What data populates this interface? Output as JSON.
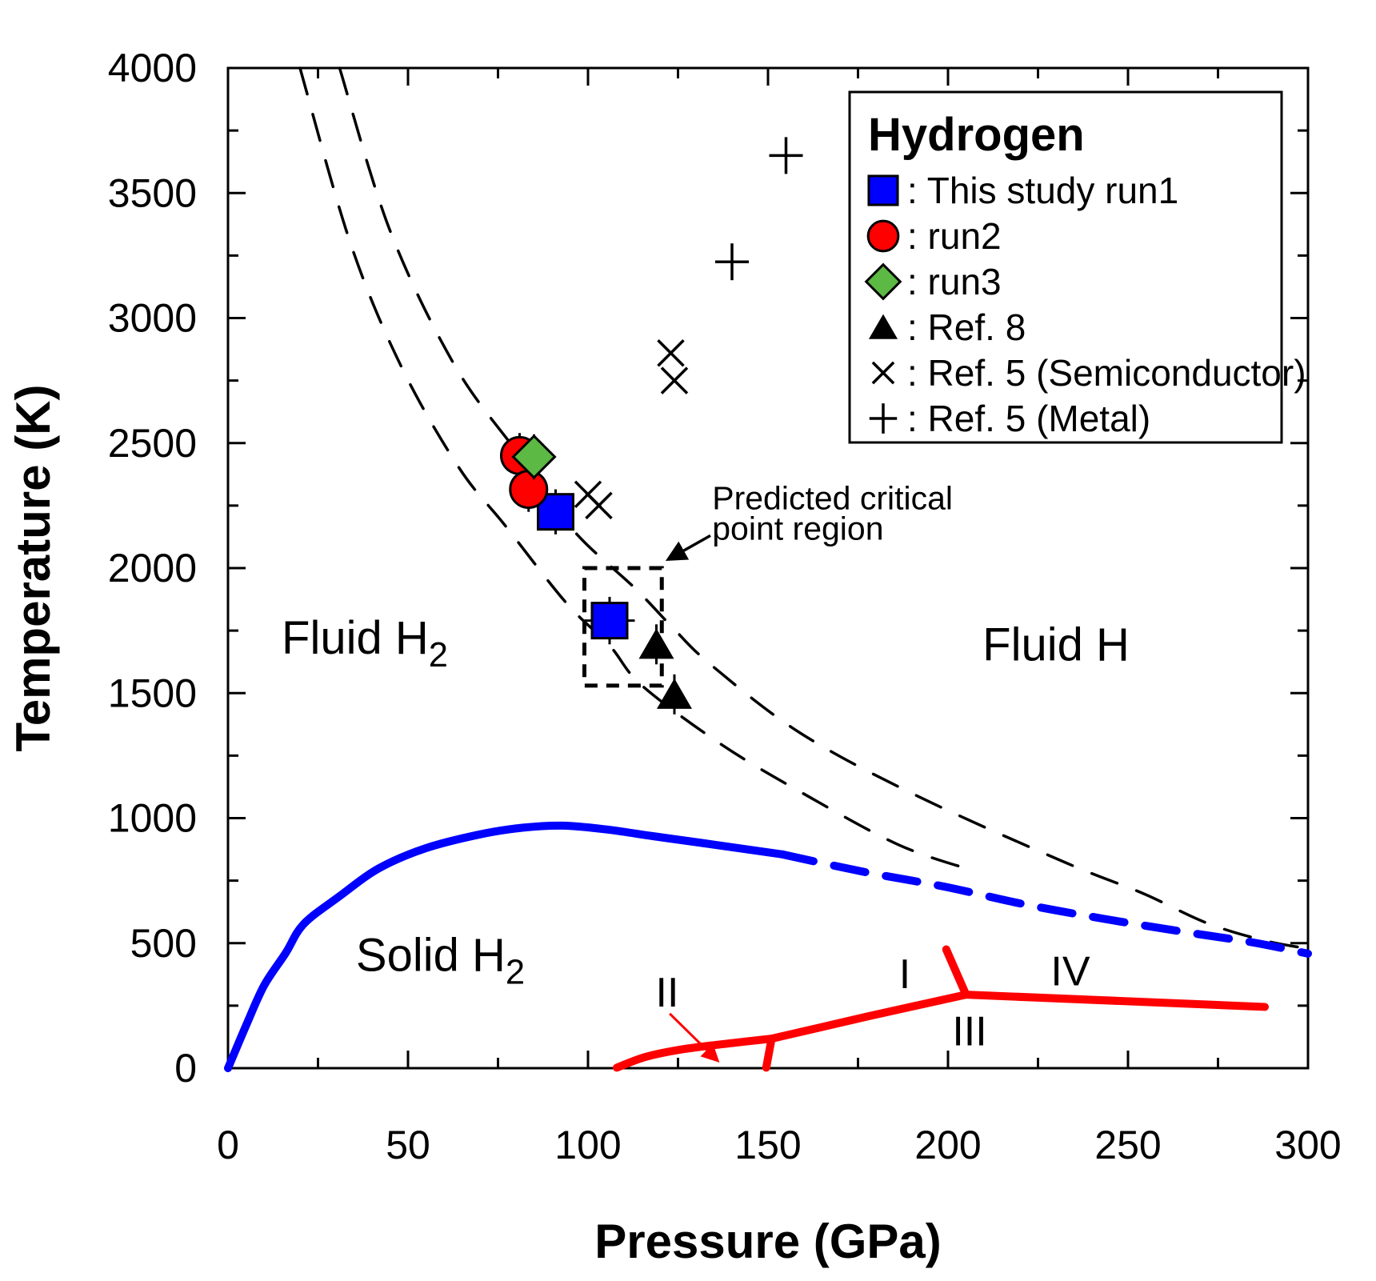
{
  "chart_data": {
    "type": "scatter",
    "title": "",
    "xlabel": "Pressure (GPa)",
    "ylabel": "Temperature (K)",
    "xlim": [
      0,
      300
    ],
    "ylim": [
      0,
      4000
    ],
    "x_major_ticks": [
      0,
      50,
      100,
      150,
      200,
      250,
      300
    ],
    "x_minor_step": 25,
    "y_major_ticks": [
      0,
      500,
      1000,
      1500,
      2000,
      2500,
      3000,
      3500,
      4000
    ],
    "y_minor_step": 250,
    "grid": false,
    "colors": {
      "blue": "#0000ff",
      "red": "#ff0000",
      "green": "#5cb944",
      "black": "#000000"
    },
    "legend": {
      "title": "Hydrogen",
      "position": "top-right",
      "separator": ": ",
      "items": [
        {
          "marker": "square",
          "color": "#0000ff",
          "label": "This study run1"
        },
        {
          "marker": "circle",
          "color": "#ff0000",
          "label": "run2"
        },
        {
          "marker": "diamond",
          "color": "#5cb944",
          "label": "run3"
        },
        {
          "marker": "triangle",
          "color": "#000000",
          "label": "Ref. 8"
        },
        {
          "marker": "x",
          "color": "#000000",
          "label": "Ref. 5 (Semiconductor)"
        },
        {
          "marker": "plus",
          "color": "#000000",
          "label": "Ref. 5 (Metal)"
        }
      ]
    },
    "series": [
      {
        "name": "This study run1",
        "marker": "square",
        "color": "#0000ff",
        "points": [
          {
            "P": 91,
            "T": 2225,
            "eT": 90
          },
          {
            "P": 106,
            "T": 1790,
            "eT": 95,
            "eP": 7
          }
        ]
      },
      {
        "name": "run2",
        "marker": "circle",
        "color": "#ff0000",
        "points": [
          {
            "P": 81,
            "T": 2450,
            "eT": 90
          },
          {
            "P": 83.5,
            "T": 2315,
            "eT": 90
          }
        ]
      },
      {
        "name": "run3",
        "marker": "diamond",
        "color": "#5cb944",
        "points": [
          {
            "P": 85,
            "T": 2445,
            "eT": 90
          }
        ]
      },
      {
        "name": "Ref. 8",
        "marker": "triangle",
        "color": "#000000",
        "points": [
          {
            "P": 119,
            "T": 1695,
            "eT": 80
          },
          {
            "P": 124,
            "T": 1495,
            "eT": 80
          }
        ]
      },
      {
        "name": "Ref. 5 (Semiconductor)",
        "marker": "x",
        "color": "#000000",
        "points": [
          {
            "P": 100,
            "T": 2295
          },
          {
            "P": 103,
            "T": 2250
          },
          {
            "P": 123,
            "T": 2860
          },
          {
            "P": 124,
            "T": 2750
          }
        ]
      },
      {
        "name": "Ref. 5 (Metal)",
        "marker": "plus",
        "color": "#000000",
        "points": [
          {
            "P": 140,
            "T": 3225
          },
          {
            "P": 155,
            "T": 3650
          }
        ]
      }
    ],
    "curves": [
      {
        "id": "dissociation-left",
        "color": "#000000",
        "width": 3.5,
        "dash": "34 26",
        "smooth": true,
        "points": [
          [
            20,
            4000
          ],
          [
            34,
            3300
          ],
          [
            48,
            2810
          ],
          [
            64,
            2405
          ],
          [
            77,
            2170
          ],
          [
            94,
            1860
          ],
          [
            106,
            1690
          ],
          [
            115,
            1530
          ],
          [
            137,
            1295
          ],
          [
            159,
            1105
          ],
          [
            186,
            895
          ],
          [
            207,
            790
          ]
        ]
      },
      {
        "id": "dissociation-right",
        "color": "#000000",
        "width": 3.5,
        "dash": "34 26",
        "smooth": true,
        "points": [
          [
            31,
            4000
          ],
          [
            45,
            3350
          ],
          [
            63,
            2810
          ],
          [
            81,
            2450
          ],
          [
            96,
            2150
          ],
          [
            113,
            1920
          ],
          [
            123,
            1770
          ],
          [
            134,
            1615
          ],
          [
            159,
            1340
          ],
          [
            192,
            1085
          ],
          [
            233,
            820
          ],
          [
            254,
            700
          ],
          [
            272,
            580
          ],
          [
            288,
            510
          ],
          [
            300,
            478
          ]
        ]
      },
      {
        "id": "melting-line-solid",
        "color": "#0000ff",
        "width": 10,
        "dash": "",
        "smooth": true,
        "points": [
          [
            0,
            0
          ],
          [
            5,
            170
          ],
          [
            10,
            330
          ],
          [
            16,
            460
          ],
          [
            21,
            576
          ],
          [
            31,
            688
          ],
          [
            42,
            800
          ],
          [
            55,
            880
          ],
          [
            70,
            935
          ],
          [
            82,
            962
          ],
          [
            93,
            970
          ],
          [
            105,
            955
          ],
          [
            118,
            928
          ],
          [
            132,
            900
          ],
          [
            154,
            855
          ]
        ]
      },
      {
        "id": "melting-line-dashed",
        "color": "#0000ff",
        "width": 10,
        "dash": "40 26",
        "smooth": true,
        "points": [
          [
            154,
            855
          ],
          [
            177,
            784
          ],
          [
            199,
            726
          ],
          [
            221,
            656
          ],
          [
            243,
            598
          ],
          [
            266,
            544
          ],
          [
            285,
            502
          ],
          [
            300,
            458
          ]
        ]
      },
      {
        "id": "phase-boundary-I-II",
        "color": "#ff0000",
        "width": 10,
        "dash": "",
        "smooth": true,
        "points": [
          [
            108,
            2
          ],
          [
            116,
            45
          ],
          [
            126,
            75
          ],
          [
            138,
            97
          ],
          [
            151,
            118
          ]
        ]
      },
      {
        "id": "phase-boundary-II-III",
        "color": "#ff0000",
        "width": 10,
        "dash": "",
        "smooth": false,
        "points": [
          [
            151,
            118
          ],
          [
            149.5,
            2
          ]
        ]
      },
      {
        "id": "phase-boundary-I-III",
        "color": "#ff0000",
        "width": 10,
        "dash": "",
        "smooth": false,
        "points": [
          [
            151,
            118
          ],
          [
            178,
            208
          ],
          [
            205,
            294
          ]
        ]
      },
      {
        "id": "phase-boundary-I-IV",
        "color": "#ff0000",
        "width": 10,
        "dash": "",
        "smooth": false,
        "points": [
          [
            205,
            294
          ],
          [
            199.5,
            475
          ]
        ]
      },
      {
        "id": "phase-boundary-IV",
        "color": "#ff0000",
        "width": 10,
        "dash": "",
        "smooth": false,
        "points": [
          [
            205,
            294
          ],
          [
            288,
            245
          ]
        ]
      }
    ],
    "region_labels": [
      {
        "id": "fluid-h2",
        "text": "Fluid H",
        "sub": "2",
        "P": 38,
        "T": 1722,
        "size": 58,
        "color": "#000000"
      },
      {
        "id": "fluid-h",
        "text": "Fluid H",
        "sub": "",
        "P": 230,
        "T": 1696,
        "size": 58,
        "color": "#000000"
      },
      {
        "id": "solid-h2",
        "text": "Solid H",
        "sub": "2",
        "P": 59,
        "T": 454,
        "size": 58,
        "color": "#000000"
      }
    ],
    "phase_labels": [
      {
        "id": "phase-ii",
        "text": "II",
        "P": 122,
        "T": 304,
        "size": 52,
        "color": "#ff0000"
      },
      {
        "id": "phase-i",
        "text": "I",
        "P": 188,
        "T": 378,
        "size": 52,
        "color": "#ff0000"
      },
      {
        "id": "phase-iii",
        "text": "III",
        "P": 206,
        "T": 150,
        "size": 52,
        "color": "#ff0000"
      },
      {
        "id": "phase-iv",
        "text": "IV",
        "P": 234,
        "T": 390,
        "size": 52,
        "color": "#ff0000"
      }
    ],
    "critical_box": {
      "P1": 99,
      "T1": 1530,
      "P2": 120.5,
      "T2": 2000
    },
    "critical_label": {
      "lines": [
        "Predicted critical",
        "point region"
      ],
      "P": 134.5,
      "T": 2235,
      "size": 41,
      "line_gap": 120
    },
    "arrows": [
      {
        "id": "critical-arrow",
        "color": "#000000",
        "width": 3.5,
        "from": {
          "P": 134,
          "T": 2130
        },
        "to": {
          "P": 122.3,
          "T": 2035
        }
      },
      {
        "id": "phase-ii-arrow",
        "color": "#ff0000",
        "width": 3,
        "from": {
          "P": 122.7,
          "T": 218
        },
        "to": {
          "P": 136,
          "T": 30
        }
      }
    ]
  }
}
